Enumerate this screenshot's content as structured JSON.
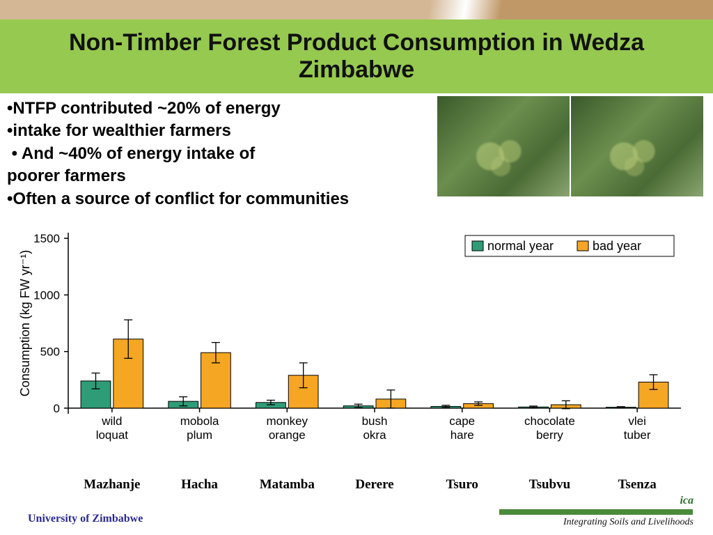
{
  "title": {
    "text": "Non-Timber Forest Product Consumption in Wedza Zimbabwe",
    "fontsize": 34,
    "bg_color": "#95c94f",
    "color": "#111111"
  },
  "top_decor_colors": [
    "#d4b896",
    "#ffffff",
    "#c09868"
  ],
  "bullets": {
    "fontsize": 24,
    "items": [
      "NTFP contributed ~20% of energy",
      "intake for wealthier farmers",
      " And ~40% of energy intake of",
      "poorer farmers",
      "Often a source of conflict for communities"
    ]
  },
  "photos": {
    "count": 2,
    "tint": "#4a6b35"
  },
  "chart": {
    "type": "grouped-bar-with-errorbars",
    "ylabel": "Consumption (kg FW yr⁻¹)",
    "ylabel_fontsize": 18,
    "ylim": [
      -50,
      1550
    ],
    "yticks": [
      0,
      500,
      1000,
      1500
    ],
    "xtick_fontsize": 17,
    "legend": {
      "items": [
        {
          "label": "normal year",
          "color": "#2f9c78"
        },
        {
          "label": "bad year",
          "color": "#f5a623"
        }
      ],
      "fontsize": 18,
      "border_color": "#000000"
    },
    "axis_color": "#000000",
    "bar_border": "#000000",
    "error_color": "#000000",
    "bar_width": 0.34,
    "categories": [
      {
        "label_lines": [
          "wild",
          "loquat"
        ],
        "normal": 240,
        "normal_err": 70,
        "bad": 610,
        "bad_err": 170
      },
      {
        "label_lines": [
          "mobola",
          "plum"
        ],
        "normal": 60,
        "normal_err": 40,
        "bad": 490,
        "bad_err": 90
      },
      {
        "label_lines": [
          "monkey",
          "orange"
        ],
        "normal": 50,
        "normal_err": 20,
        "bad": 290,
        "bad_err": 110
      },
      {
        "label_lines": [
          "bush",
          "okra"
        ],
        "normal": 20,
        "normal_err": 15,
        "bad": 80,
        "bad_err": 80
      },
      {
        "label_lines": [
          "cape",
          "hare"
        ],
        "normal": 15,
        "normal_err": 10,
        "bad": 40,
        "bad_err": 15
      },
      {
        "label_lines": [
          "chocolate",
          "berry"
        ],
        "normal": 10,
        "normal_err": 8,
        "bad": 30,
        "bad_err": 35
      },
      {
        "label_lines": [
          "vlei",
          "tuber"
        ],
        "normal": 8,
        "normal_err": 5,
        "bad": 230,
        "bad_err": 65
      }
    ]
  },
  "local_names": {
    "fontsize": 19,
    "items": [
      "Mazhanje",
      "Hacha",
      "Matamba",
      "Derere",
      "Tsuro",
      "Tsubvu",
      "Tsenza"
    ]
  },
  "footer": {
    "left": {
      "text": "University of Zimbabwe",
      "fontsize": 16,
      "color": "#2a2a8a"
    },
    "right": {
      "ica": "ica",
      "bar_color": "#4a8a3a",
      "sub": "Integrating Soils and Livelihoods",
      "sub_fontsize": 14
    }
  }
}
